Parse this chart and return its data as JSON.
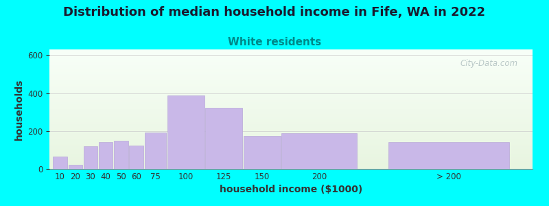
{
  "title": "Distribution of median household income in Fife, WA in 2022",
  "subtitle": "White residents",
  "xlabel": "household income ($1000)",
  "ylabel": "households",
  "background_outer": "#00FFFF",
  "bar_color": "#c9b8e8",
  "bar_edgecolor": "#b8a8d8",
  "categories": [
    "10",
    "20",
    "30",
    "40",
    "50",
    "60",
    "75",
    "100",
    "125",
    "150",
    "200",
    "> 200"
  ],
  "values": [
    65,
    22,
    118,
    143,
    150,
    123,
    193,
    388,
    323,
    173,
    188,
    143
  ],
  "bar_lefts": [
    0,
    10,
    20,
    30,
    40,
    50,
    60,
    75,
    100,
    125,
    150,
    220
  ],
  "bar_widths": [
    10,
    10,
    10,
    10,
    10,
    10,
    15,
    25,
    25,
    25,
    50,
    80
  ],
  "ylim": [
    0,
    630
  ],
  "yticks": [
    0,
    200,
    400,
    600
  ],
  "xlim_left": -2,
  "xlim_right": 315,
  "title_fontsize": 13,
  "subtitle_fontsize": 11,
  "subtitle_color": "#008888",
  "axis_label_fontsize": 10,
  "tick_fontsize": 8.5,
  "watermark": "City-Data.com",
  "grad_top": "#e8f5e0",
  "grad_bottom": "#f8fff8"
}
